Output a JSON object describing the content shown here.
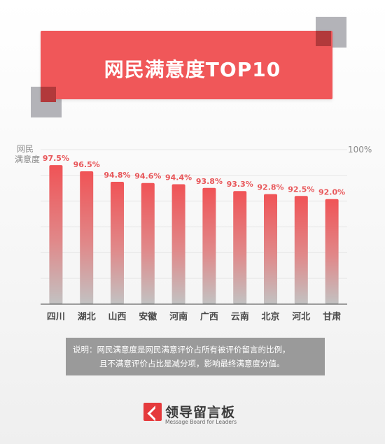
{
  "banner": {
    "title": "网民满意度TOP10"
  },
  "chart_data": {
    "type": "bar",
    "categories": [
      "四川",
      "湖北",
      "山西",
      "安徽",
      "河南",
      "广西",
      "云南",
      "北京",
      "河北",
      "甘肃"
    ],
    "values": [
      97.5,
      96.5,
      94.8,
      94.6,
      94.4,
      93.8,
      93.3,
      92.8,
      92.5,
      92.0
    ],
    "value_labels": [
      "97.5%",
      "96.5%",
      "94.8%",
      "94.6%",
      "94.4%",
      "93.8%",
      "93.3%",
      "92.8%",
      "92.5%",
      "92.0%"
    ],
    "ylabel_line1": "网民",
    "ylabel_line2": "满意度",
    "ymax_label": "100%",
    "ylim": [
      75,
      100
    ],
    "grid": true,
    "colors": {
      "bar_top": "#f05356",
      "bar_bottom": "#c2c2c2",
      "label": "#e8575a",
      "grid": "#e6e6e6",
      "axis": "#444444"
    }
  },
  "note": {
    "line1": "说明：网民满意度是网民满意评价占所有被评价留言的比例，",
    "line2": "且不满意评价占比是减分项，影响最终满意度分值。"
  },
  "logo": {
    "cn": "领导留言板",
    "en": "Message Board for Leaders"
  },
  "decor": {
    "accent": "#f05759",
    "dark": "#b2393b",
    "gray": "#b3b3b8"
  }
}
